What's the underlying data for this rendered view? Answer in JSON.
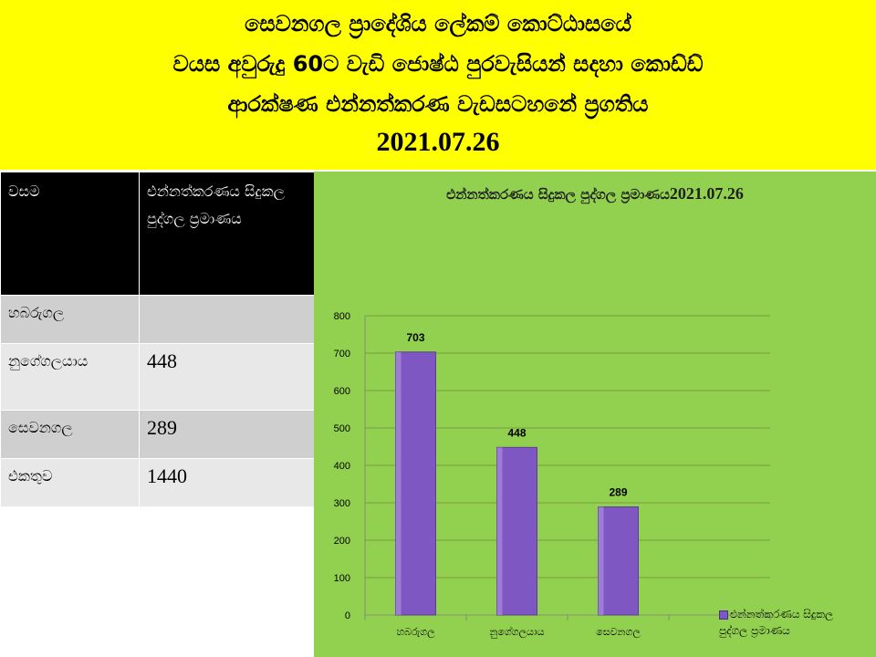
{
  "header": {
    "line1": "සෙවනගල ප්‍රාදේශිය ලේකම් කොට්ඨාසයේ",
    "line2": "වයස අවුරුදු 60ට වැඩි ජොෂ්ඨ පුරවැසියන් සදහා කොඩ්ඩ්",
    "line3": "ආරක්ෂණ එන්නත්කරණ වැඩසටහනේ  ප්‍රගතිය",
    "date": "2021.07.26"
  },
  "table": {
    "headers": [
      "වසම",
      "එන්නත්කරණය සිදුකල පුද්ගල ප්‍රමාණය"
    ],
    "rows": [
      {
        "name": "හබරුගල",
        "value": ""
      },
      {
        "name": "නුගේගලයාය",
        "value": "448"
      },
      {
        "name": "සෙවනගල",
        "value": "289"
      },
      {
        "name": "එකතුව",
        "value": "1440"
      }
    ]
  },
  "chart_title": {
    "text": "එන්නත්කරණය සිදුකල පුද්ගල ප්‍රමාණය",
    "date": "2021.07.26"
  },
  "chart_data": {
    "type": "bar",
    "title": "එන්නත්කරණය සිදුකල පුද්ගල ප්‍රමාණය2021.07.26",
    "categories": [
      "හබරුගල",
      "නුගේගලයාය",
      "සෙවනගල"
    ],
    "series": [
      {
        "name": "එන්නත්කරණය සිදුකල පුද්ගල ප්‍රමාණය",
        "values": [
          703,
          448,
          289
        ]
      }
    ],
    "ylim": [
      0,
      800
    ],
    "yticks": [
      0,
      100,
      200,
      300,
      400,
      500,
      600,
      700,
      800
    ],
    "grid": true,
    "legend": "bottom-right",
    "bar_color": "#7e57c2",
    "panel_color": "#92d050"
  },
  "legend": {
    "line1": "එන්නත්කරණය සිදුකල",
    "line2": "පුද්ගල ප්‍රමාණය"
  },
  "colors": {
    "header_bg": "#ffff00",
    "table_header_bg": "#000000"
  }
}
